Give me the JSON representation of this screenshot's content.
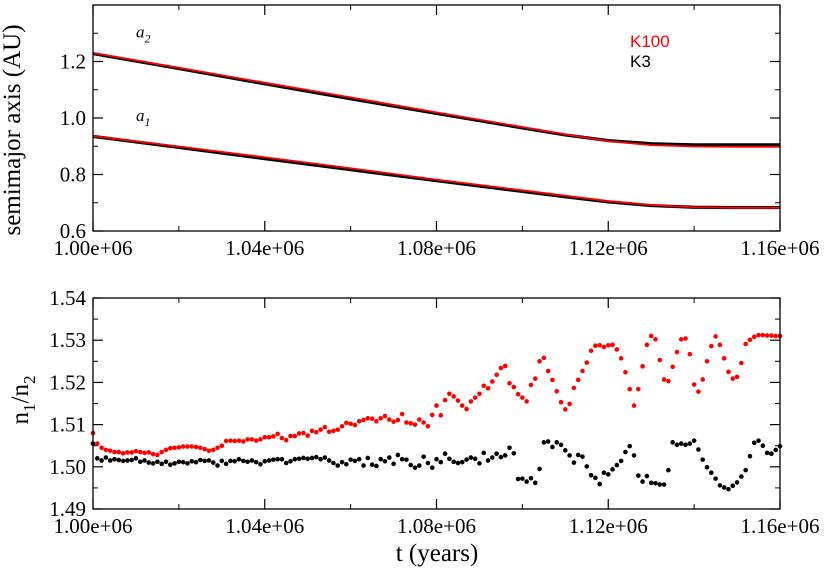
{
  "colors": {
    "k100": "#ff0000",
    "k3": "#000000",
    "axis": "#000000",
    "background": "#ffffff"
  },
  "chart_data": [
    {
      "type": "line",
      "panel": "top",
      "title": "",
      "xlabel": "",
      "ylabel": "semimajor axis (AU)",
      "xlim": [
        1000000,
        1160000
      ],
      "ylim": [
        0.6,
        1.4
      ],
      "xticks": [
        1000000,
        1040000,
        1080000,
        1120000,
        1160000
      ],
      "xtick_labels": [
        "1.00e+06",
        "1.04e+06",
        "1.08e+06",
        "1.12e+06",
        "1.16e+06"
      ],
      "yticks": [
        0.6,
        0.8,
        1.0,
        1.2
      ],
      "ytick_labels": [
        "0.6",
        "0.8",
        "1.0",
        "1.2"
      ],
      "legend": {
        "placement": "top-right",
        "entries": [
          {
            "label": "K100",
            "color": "#ff0000"
          },
          {
            "label": "K3",
            "color": "#000000"
          }
        ]
      },
      "annotations": [
        {
          "base": "a",
          "sub": "2",
          "x": 1010000,
          "y": 1.285
        },
        {
          "base": "a",
          "sub": "1",
          "x": 1010000,
          "y": 0.99
        }
      ],
      "series": [
        {
          "name": "a2 K3",
          "color": "#000000",
          "width": 3.2,
          "x": [
            1000000,
            1020000,
            1040000,
            1060000,
            1080000,
            1100000,
            1110000,
            1120000,
            1130000,
            1140000,
            1150000,
            1160000
          ],
          "y": [
            1.228,
            1.175,
            1.121,
            1.068,
            1.016,
            0.965,
            0.94,
            0.92,
            0.909,
            0.905,
            0.905,
            0.905
          ]
        },
        {
          "name": "a2 K100",
          "color": "#ff0000",
          "width": 1.8,
          "x": [
            1000000,
            1020000,
            1040000,
            1060000,
            1080000,
            1100000,
            1110000,
            1120000,
            1130000,
            1140000,
            1150000,
            1160000
          ],
          "y": [
            1.23,
            1.178,
            1.125,
            1.073,
            1.02,
            0.968,
            0.942,
            0.918,
            0.904,
            0.899,
            0.898,
            0.898
          ]
        },
        {
          "name": "a1 K3",
          "color": "#000000",
          "width": 3.2,
          "x": [
            1000000,
            1020000,
            1040000,
            1060000,
            1080000,
            1100000,
            1110000,
            1120000,
            1130000,
            1140000,
            1150000,
            1160000
          ],
          "y": [
            0.935,
            0.896,
            0.856,
            0.817,
            0.778,
            0.74,
            0.721,
            0.703,
            0.69,
            0.684,
            0.683,
            0.683
          ]
        },
        {
          "name": "a1 K100",
          "color": "#ff0000",
          "width": 1.8,
          "x": [
            1000000,
            1020000,
            1040000,
            1060000,
            1080000,
            1100000,
            1110000,
            1120000,
            1130000,
            1140000,
            1150000,
            1160000
          ],
          "y": [
            0.936,
            0.899,
            0.861,
            0.822,
            0.782,
            0.744,
            0.725,
            0.706,
            0.692,
            0.684,
            0.682,
            0.682
          ]
        }
      ]
    },
    {
      "type": "scatter",
      "panel": "bottom",
      "title": "",
      "xlabel": "t (years)",
      "ylabel": {
        "base": "n",
        "sub1": "1",
        "sep": "/n",
        "sub2": "2"
      },
      "xlim": [
        1000000,
        1160000
      ],
      "ylim": [
        1.49,
        1.54
      ],
      "xticks": [
        1000000,
        1040000,
        1080000,
        1120000,
        1160000
      ],
      "xtick_labels": [
        "1.00e+06",
        "1.04e+06",
        "1.08e+06",
        "1.12e+06",
        "1.16e+06"
      ],
      "yticks": [
        1.49,
        1.5,
        1.51,
        1.52,
        1.53,
        1.54
      ],
      "ytick_labels": [
        "1.49",
        "1.50",
        "1.51",
        "1.52",
        "1.53",
        "1.54"
      ],
      "series": [
        {
          "name": "K100",
          "color": "#ff0000",
          "x": [
            1000000,
            1001000,
            1002000,
            1003000,
            1004000,
            1005000,
            1006000,
            1007000,
            1008000,
            1009000,
            1010000,
            1011000,
            1012000,
            1013000,
            1014000,
            1015000,
            1016000,
            1017000,
            1018000,
            1019000,
            1020000,
            1021000,
            1022000,
            1023000,
            1024000,
            1025000,
            1026000,
            1027000,
            1028000,
            1029000,
            1030000,
            1031000,
            1032000,
            1033000,
            1034000,
            1035000,
            1036000,
            1037000,
            1038000,
            1039000,
            1040000,
            1041000,
            1042000,
            1043000,
            1044000,
            1045000,
            1046000,
            1047000,
            1048000,
            1049000,
            1050000,
            1051000,
            1052000,
            1053000,
            1054000,
            1055000,
            1056000,
            1057000,
            1058000,
            1059000,
            1060000,
            1061000,
            1062000,
            1063000,
            1064000,
            1065000,
            1066000,
            1067000,
            1068000,
            1069000,
            1070000,
            1071000,
            1072000,
            1073000,
            1074000,
            1075000,
            1076000,
            1077000,
            1078000,
            1079000,
            1080000,
            1081000,
            1082000,
            1083000,
            1084000,
            1085000,
            1086000,
            1087000,
            1088000,
            1089000,
            1090000,
            1091000,
            1092000,
            1093000,
            1094000,
            1095000,
            1096000,
            1097000,
            1098000,
            1099000,
            1100000,
            1101000,
            1102000,
            1103000,
            1104000,
            1105000,
            1106000,
            1107000,
            1108000,
            1109000,
            1110000,
            1111000,
            1112000,
            1113000,
            1114000,
            1115000,
            1116000,
            1117000,
            1118000,
            1119000,
            1120000,
            1121000,
            1122000,
            1123000,
            1124000,
            1125000,
            1126000,
            1127000,
            1128000,
            1129000,
            1130000,
            1131000,
            1132000,
            1133000,
            1134000,
            1135000,
            1136000,
            1137000,
            1138000,
            1139000,
            1140000,
            1141000,
            1142000,
            1143000,
            1144000,
            1145000,
            1146000,
            1147000,
            1148000,
            1149000,
            1150000,
            1151000,
            1152000,
            1153000,
            1154000,
            1155000,
            1156000,
            1157000,
            1158000,
            1159000,
            1160000
          ],
          "y": [
            1.508,
            1.5055,
            1.5045,
            1.504,
            1.5038,
            1.5035,
            1.5035,
            1.5032,
            1.5034,
            1.5034,
            1.5037,
            1.5035,
            1.5033,
            1.5034,
            1.503,
            1.5028,
            1.5035,
            1.504,
            1.5044,
            1.5045,
            1.5046,
            1.5048,
            1.5048,
            1.5048,
            1.5047,
            1.5045,
            1.5042,
            1.5038,
            1.504,
            1.5045,
            1.505,
            1.5061,
            1.5062,
            1.5061,
            1.5062,
            1.506,
            1.5065,
            1.5065,
            1.5062,
            1.5065,
            1.507,
            1.507,
            1.5072,
            1.5078,
            1.5068,
            1.5063,
            1.5073,
            1.5073,
            1.5079,
            1.508,
            1.5074,
            1.5085,
            1.5082,
            1.5088,
            1.5094,
            1.5083,
            1.5085,
            1.5088,
            1.5096,
            1.5104,
            1.5102,
            1.5099,
            1.5108,
            1.5111,
            1.5115,
            1.5114,
            1.5108,
            1.5115,
            1.512,
            1.5112,
            1.5107,
            1.5111,
            1.5125,
            1.5105,
            1.5103,
            1.51,
            1.5112,
            1.5105,
            1.5096,
            1.5123,
            1.5145,
            1.5122,
            1.5158,
            1.5173,
            1.5167,
            1.5157,
            1.5145,
            1.5137,
            1.5155,
            1.5164,
            1.5173,
            1.5192,
            1.5186,
            1.5202,
            1.5218,
            1.5234,
            1.5239,
            1.5198,
            1.5189,
            1.5172,
            1.5164,
            1.5155,
            1.5194,
            1.5209,
            1.525,
            1.5258,
            1.5227,
            1.5206,
            1.5179,
            1.5153,
            1.5136,
            1.5149,
            1.5187,
            1.5206,
            1.5227,
            1.5247,
            1.5275,
            1.5287,
            1.5288,
            1.5284,
            1.5288,
            1.5289,
            1.5278,
            1.5257,
            1.5224,
            1.5184,
            1.5145,
            1.5184,
            1.5238,
            1.5289,
            1.531,
            1.5302,
            1.5253,
            1.5207,
            1.5203,
            1.5237,
            1.5272,
            1.5302,
            1.5304,
            1.5267,
            1.5195,
            1.5178,
            1.5207,
            1.525,
            1.5286,
            1.5309,
            1.5289,
            1.5257,
            1.5225,
            1.5209,
            1.5213,
            1.5246,
            1.5291,
            1.5301,
            1.5308,
            1.5312,
            1.5312,
            1.5311,
            1.5311,
            1.531,
            1.531
          ],
          "marker_px": 4.6
        },
        {
          "name": "K3",
          "color": "#000000",
          "x": [
            1000000,
            1001000,
            1002000,
            1003000,
            1004000,
            1005000,
            1006000,
            1007000,
            1008000,
            1009000,
            1010000,
            1011000,
            1012000,
            1013000,
            1014000,
            1015000,
            1016000,
            1017000,
            1018000,
            1019000,
            1020000,
            1021000,
            1022000,
            1023000,
            1024000,
            1025000,
            1026000,
            1027000,
            1028000,
            1029000,
            1030000,
            1031000,
            1032000,
            1033000,
            1034000,
            1035000,
            1036000,
            1037000,
            1038000,
            1039000,
            1040000,
            1041000,
            1042000,
            1043000,
            1044000,
            1045000,
            1046000,
            1047000,
            1048000,
            1049000,
            1050000,
            1051000,
            1052000,
            1053000,
            1054000,
            1055000,
            1056000,
            1057000,
            1058000,
            1059000,
            1060000,
            1061000,
            1062000,
            1063000,
            1064000,
            1065000,
            1066000,
            1067000,
            1068000,
            1069000,
            1070000,
            1071000,
            1072000,
            1073000,
            1074000,
            1075000,
            1076000,
            1077000,
            1078000,
            1079000,
            1080000,
            1081000,
            1082000,
            1083000,
            1084000,
            1085000,
            1086000,
            1087000,
            1088000,
            1089000,
            1090000,
            1091000,
            1092000,
            1093000,
            1094000,
            1095000,
            1096000,
            1097000,
            1098000,
            1099000,
            1100000,
            1101000,
            1102000,
            1103000,
            1104000,
            1105000,
            1106000,
            1107000,
            1108000,
            1109000,
            1110000,
            1111000,
            1112000,
            1113000,
            1114000,
            1115000,
            1116000,
            1117000,
            1118000,
            1119000,
            1120000,
            1121000,
            1122000,
            1123000,
            1124000,
            1125000,
            1126000,
            1127000,
            1128000,
            1129000,
            1130000,
            1131000,
            1132000,
            1133000,
            1134000,
            1135000,
            1136000,
            1137000,
            1138000,
            1139000,
            1140000,
            1141000,
            1142000,
            1143000,
            1144000,
            1145000,
            1146000,
            1147000,
            1148000,
            1149000,
            1150000,
            1151000,
            1152000,
            1153000,
            1154000,
            1155000,
            1156000,
            1157000,
            1158000,
            1159000,
            1160000
          ],
          "y": [
            1.5055,
            1.502,
            1.5015,
            1.5022,
            1.5015,
            1.5018,
            1.5016,
            1.5014,
            1.5015,
            1.5016,
            1.502,
            1.5012,
            1.5015,
            1.501,
            1.5008,
            1.5012,
            1.5007,
            1.5012,
            1.5005,
            1.5008,
            1.5012,
            1.5011,
            1.5008,
            1.5013,
            1.5011,
            1.5016,
            1.5014,
            1.5015,
            1.501,
            1.5003,
            1.5014,
            1.5007,
            1.5014,
            1.5013,
            1.5018,
            1.5014,
            1.5012,
            1.5015,
            1.5011,
            1.5006,
            1.5013,
            1.5015,
            1.5017,
            1.5018,
            1.5018,
            1.5009,
            1.5013,
            1.5018,
            1.5019,
            1.5021,
            1.5019,
            1.5021,
            1.5023,
            1.5018,
            1.5022,
            1.5015,
            1.5009,
            1.5003,
            1.5011,
            1.5006,
            1.5017,
            1.5014,
            1.5018,
            1.5003,
            1.5021,
            1.5005,
            1.5002,
            1.5018,
            1.5013,
            1.5022,
            1.5007,
            1.5028,
            1.5018,
            1.5017,
            1.5004,
            1.4998,
            1.5003,
            1.5024,
            1.5009,
            1.4998,
            1.5018,
            1.5011,
            1.5031,
            1.5019,
            1.5012,
            1.5009,
            1.5011,
            1.5017,
            1.5022,
            1.5019,
            1.5008,
            1.5033,
            1.5015,
            1.5022,
            1.5031,
            1.5023,
            1.5027,
            1.5045,
            1.5032,
            1.4971,
            1.4972,
            1.4965,
            1.4973,
            1.4962,
            1.4995,
            1.5058,
            1.506,
            1.5047,
            1.5058,
            1.5052,
            1.5039,
            1.5027,
            1.501,
            1.5028,
            1.5024,
            1.5001,
            1.498,
            1.4974,
            1.4959,
            1.4986,
            1.4982,
            1.4994,
            1.5004,
            1.5014,
            1.5035,
            1.5049,
            1.5027,
            1.4979,
            1.4965,
            1.4978,
            1.4962,
            1.4961,
            1.4958,
            1.4958,
            1.4992,
            1.5058,
            1.5052,
            1.5055,
            1.5052,
            1.5055,
            1.5062,
            1.5041,
            1.5017,
            1.4999,
            1.4986,
            1.4972,
            1.4956,
            1.4951,
            1.4947,
            1.4955,
            1.4963,
            1.4977,
            1.4992,
            1.5025,
            1.5057,
            1.5062,
            1.505,
            1.5033,
            1.5031,
            1.504,
            1.5049
          ],
          "marker_px": 4.6
        }
      ]
    }
  ]
}
